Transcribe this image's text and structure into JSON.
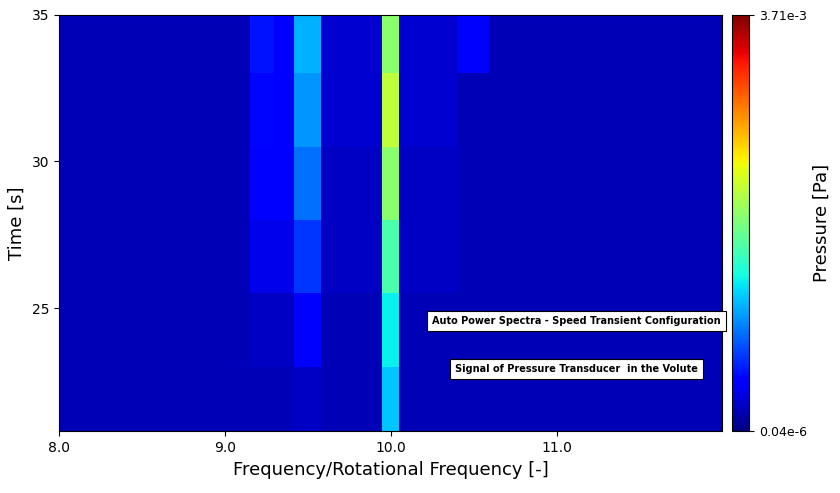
{
  "chart_data": {
    "type": "heatmap",
    "xlabel": "Frequency/Rotational Frequency [-]",
    "ylabel": "Time [s]",
    "annotations": [
      "Auto Power Spectra - Speed Transient Configuration",
      "Signal of Pressure Transducer  in the Volute"
    ],
    "xlim": [
      8.0,
      12.0
    ],
    "xticks": [
      8.0,
      9.0,
      10.0,
      11.0
    ],
    "ylim": [
      20.8,
      35
    ],
    "yticks": [
      25,
      30,
      35
    ],
    "x_edges": [
      8.0,
      9.15,
      9.3,
      9.42,
      9.58,
      9.95,
      10.05,
      10.4,
      10.6,
      12.0
    ],
    "y_edges": [
      20.8,
      23,
      25.5,
      28,
      30.5,
      33,
      35
    ],
    "cells": [
      [
        7e-08,
        7e-08,
        7e-08,
        8e-08,
        7e-08,
        1.5e-06,
        7e-08,
        7e-08,
        7e-08
      ],
      [
        7e-08,
        8e-08,
        8e-08,
        1.5e-07,
        7e-08,
        2.5e-06,
        7e-08,
        7e-08,
        7e-08
      ],
      [
        7e-08,
        1.2e-07,
        1.2e-07,
        3e-07,
        8e-08,
        6e-06,
        8e-08,
        7e-08,
        7e-08
      ],
      [
        7e-08,
        1.5e-07,
        1.5e-07,
        6e-07,
        8e-08,
        1.5e-05,
        8e-08,
        7e-08,
        7e-08
      ],
      [
        7e-08,
        1.8e-07,
        1.5e-07,
        9e-07,
        9e-08,
        3e-05,
        9e-08,
        7e-08,
        7e-08
      ],
      [
        7e-08,
        2e-07,
        1.5e-07,
        1.2e-06,
        9e-08,
        1.5e-05,
        9e-08,
        1.5e-07,
        7e-08
      ]
    ],
    "colorbar": {
      "label": "Pressure [Pa]",
      "log": true,
      "range": [
        4e-08,
        0.00371
      ],
      "ticks": [
        {
          "value": 4e-08,
          "label": "0.04e-6"
        },
        {
          "value": 0.00371,
          "label": "3.71e-3"
        }
      ]
    }
  }
}
